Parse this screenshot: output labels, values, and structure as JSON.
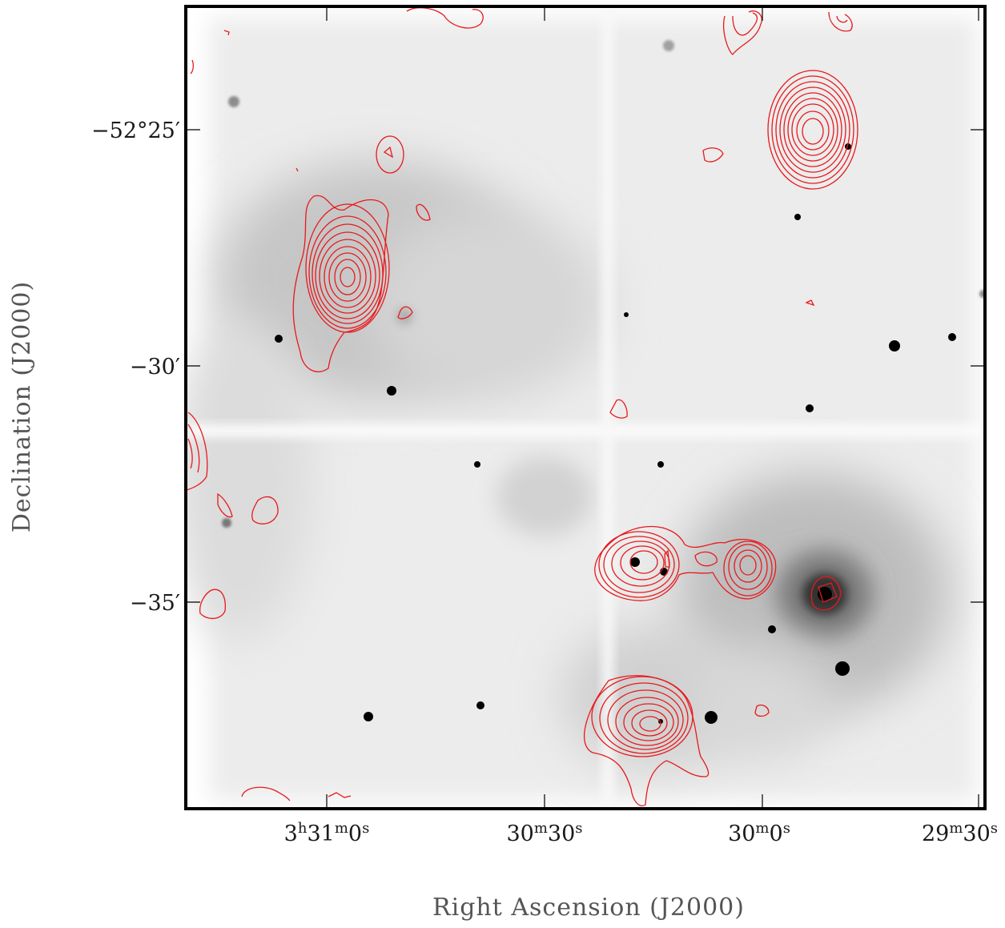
{
  "figure": {
    "dec_ticks": [
      {
        "deg": "−52°",
        "min": "25′"
      },
      {
        "deg": "−",
        "min": "30′"
      },
      {
        "deg": "−",
        "min": "35′"
      }
    ],
    "ra_ticks": [
      {
        "h": "3",
        "hu": "h",
        "m": "31",
        "mu": "m",
        "s": "0",
        "su": "s"
      },
      {
        "h": "",
        "hu": "",
        "m": "30",
        "mu": "m",
        "s": "30",
        "su": "s"
      },
      {
        "h": "",
        "hu": "",
        "m": "30",
        "mu": "m",
        "s": "0",
        "su": "s"
      },
      {
        "h": "",
        "hu": "",
        "m": "29",
        "mu": "m",
        "s": "30",
        "su": "s"
      }
    ],
    "xlabel": "Right Ascension (J2000)",
    "ylabel": "Declination (J2000)"
  },
  "colors": {
    "contour": "#e8191c",
    "background": "#f2f2f2",
    "frame": "#000000"
  }
}
